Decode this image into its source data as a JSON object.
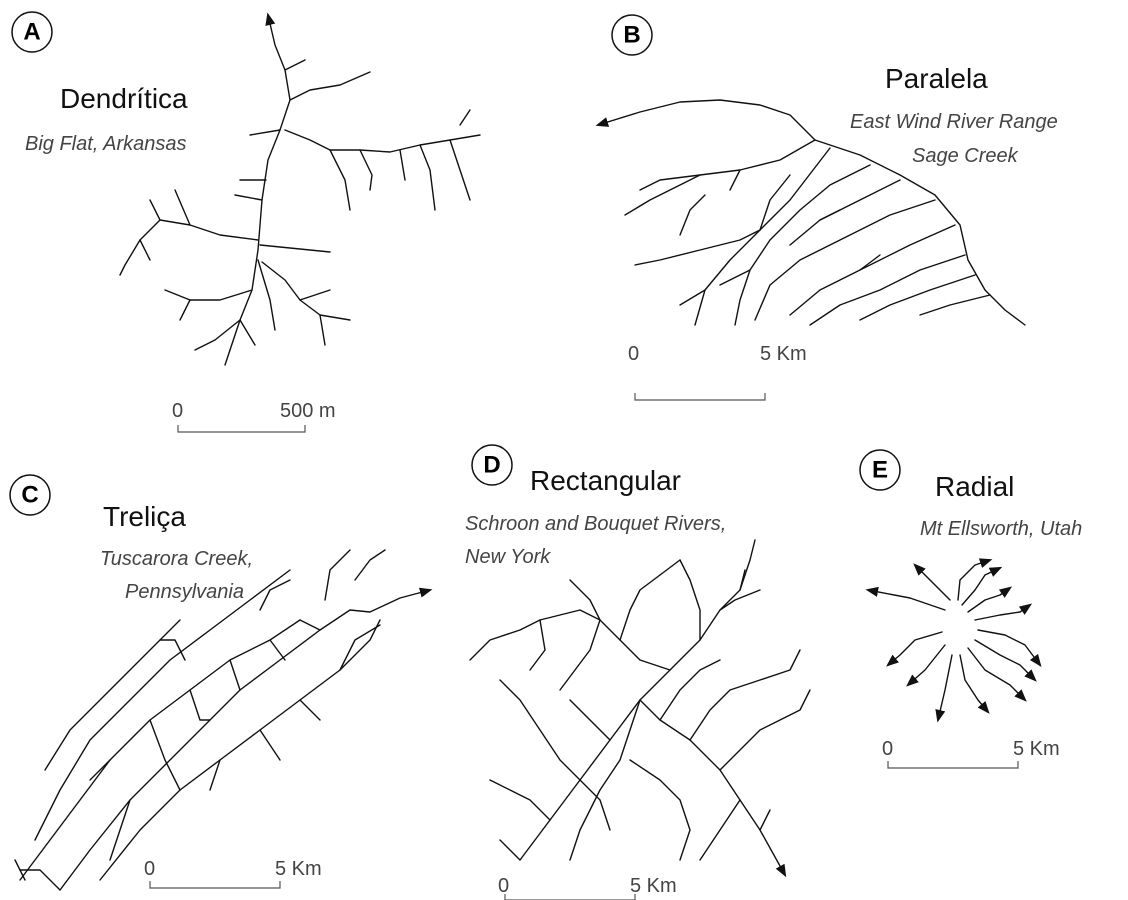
{
  "panels": [
    {
      "letter": "A",
      "title": "Dendrítica",
      "subtitle": [
        "Big Flat, Arkansas"
      ],
      "scale": [
        "0",
        "500 m"
      ]
    },
    {
      "letter": "B",
      "title": "Paralela",
      "subtitle": [
        "East Wind River Range",
        "Sage Creek"
      ],
      "scale": [
        "0",
        "5 Km"
      ]
    },
    {
      "letter": "C",
      "title": "Treliça",
      "subtitle": [
        "Tuscarora Creek,",
        "Pennsylvania"
      ],
      "scale": [
        "0",
        "5 Km"
      ]
    },
    {
      "letter": "D",
      "title": "Rectangular",
      "subtitle": [
        "Schroon and Bouquet Rivers,",
        "New York"
      ],
      "scale": [
        "0",
        "5 Km"
      ]
    },
    {
      "letter": "E",
      "title": "Radial",
      "subtitle": [
        "Mt Ellsworth, Utah"
      ],
      "scale": [
        "0",
        "5 Km"
      ]
    }
  ]
}
